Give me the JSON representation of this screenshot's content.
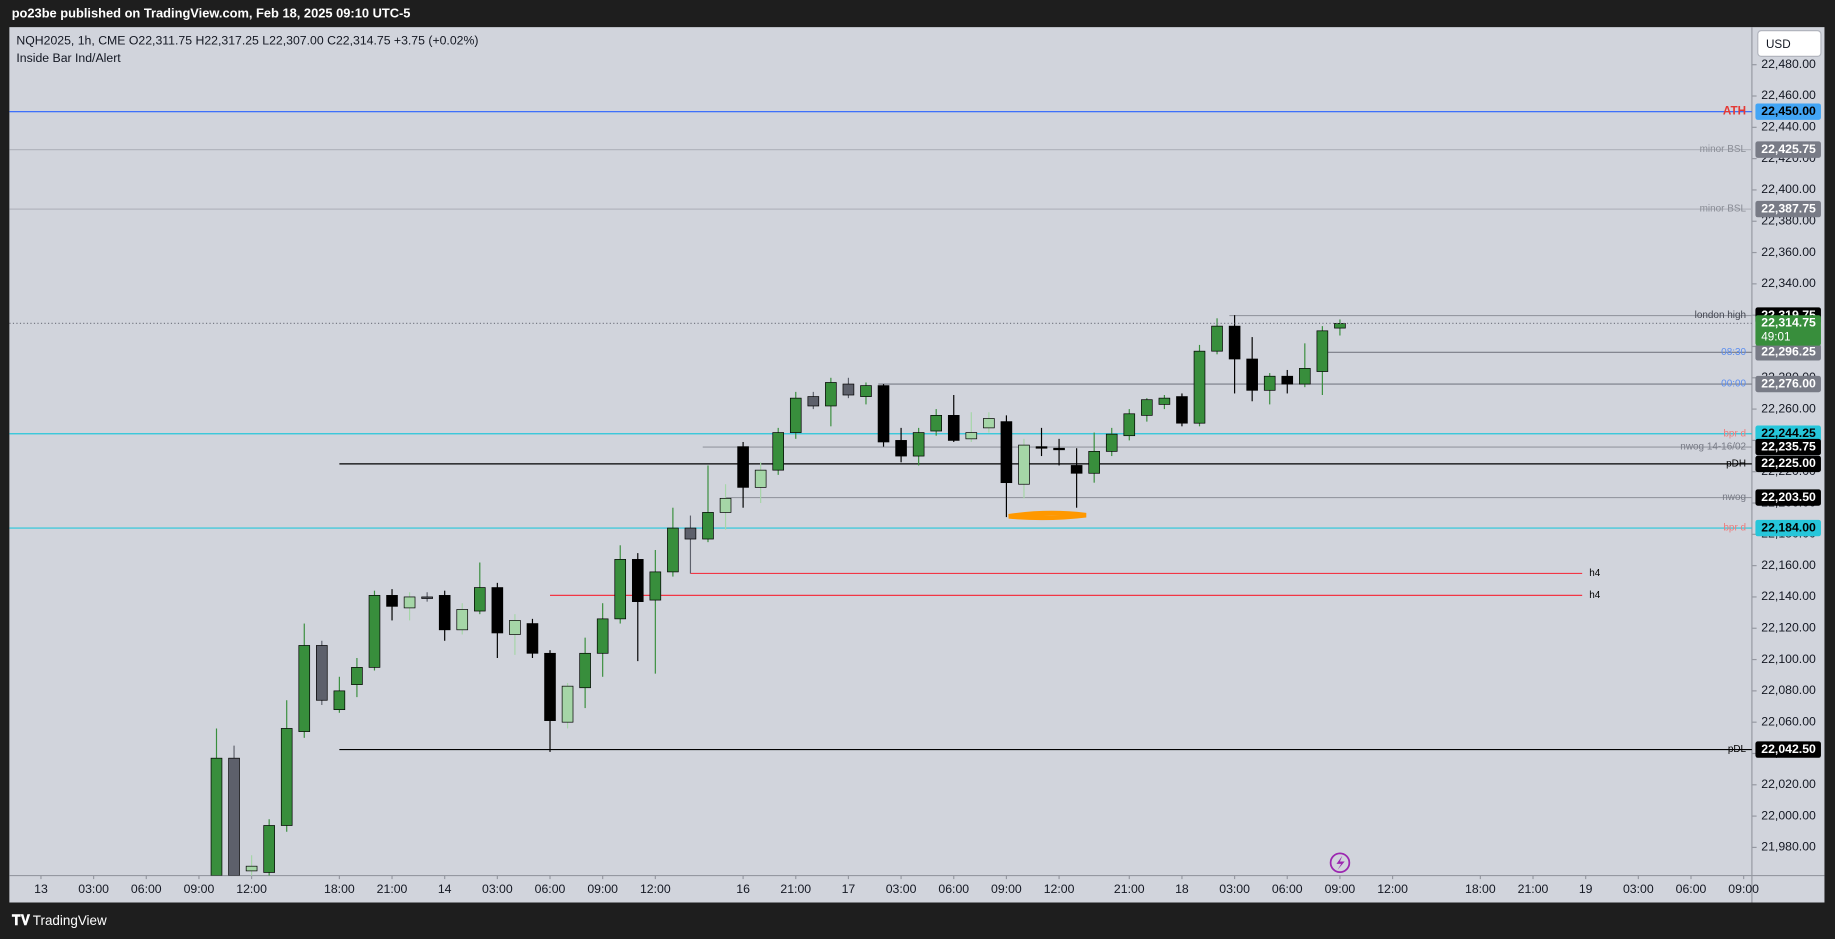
{
  "chart_data": {
    "type": "candlestick",
    "header": "po23be published on TradingView.com, Feb 18, 2025 09:10 UTC-5",
    "legend": "NQH2025, 1h, CME  O22,311.75  H22,317.25  L22,307.00  C22,314.75  +3.75 (+0.02%)",
    "indicator": "Inside Bar Ind/Alert",
    "currency": "USD",
    "brand": "TradingView",
    "up_color": "#388e3c",
    "down_color": "#000000",
    "inside_up_color": "#a5d6a7",
    "inside_down_color": "#5d606b",
    "candles": {
      "open": [
        21962,
        22037,
        21965,
        21964,
        21994,
        22054,
        22109,
        22068,
        22084,
        22095,
        22141,
        22133,
        22140,
        22141,
        22119,
        22131,
        22146,
        22116,
        22123,
        22104,
        22060,
        22082,
        22104,
        22126,
        22164,
        22138,
        22156,
        22184,
        22177,
        22194,
        22236,
        22210,
        22221,
        22245,
        22268,
        22262,
        22276,
        22268,
        22275,
        22240,
        22230,
        22246,
        22256,
        22241,
        22248,
        22252,
        22212,
        22236,
        22235,
        22224,
        22219,
        22233,
        22243,
        22256,
        22263,
        22268,
        22251,
        22297,
        22313,
        22292,
        22272,
        22281,
        22276,
        22284,
        22311.75
      ],
      "high": [
        22056,
        22045,
        21975,
        21998,
        22074,
        22123,
        22112,
        22089,
        22101,
        22144,
        22145,
        22143,
        22143,
        22144,
        22136,
        22162,
        22149,
        22129,
        22126,
        22106,
        22085,
        22114,
        22136,
        22173,
        22168,
        22170,
        22197,
        22192,
        22224,
        22212,
        22239,
        22226,
        22248,
        22271,
        22271,
        22280,
        22280,
        22277,
        22276,
        22248,
        22248,
        22260,
        22269,
        22258,
        22258,
        22256,
        22241,
        22248,
        22241,
        22235,
        22245,
        22248,
        22260,
        22267,
        22269,
        22270,
        22301,
        22318,
        22320,
        22306,
        22283,
        22285,
        22302,
        22313,
        22317.25
      ],
      "low": [
        21962,
        21962,
        21962,
        21962,
        21990,
        22050,
        22071,
        22066,
        22076,
        22093,
        22125,
        22125,
        22137,
        22112,
        22116,
        22129,
        22101,
        22103,
        22101,
        22041,
        22056,
        22069,
        22089,
        22123,
        22099,
        22091,
        22153,
        22155,
        22175,
        22183,
        22197,
        22200,
        22218,
        22241,
        22260,
        22249,
        22267,
        22263,
        22236,
        22226,
        22224,
        22243,
        22239,
        22239,
        22245,
        22191,
        22203,
        22230,
        22224,
        22197,
        22213,
        22230,
        22240,
        22252,
        22260,
        22249,
        22249,
        22295,
        22270,
        22265,
        22263,
        22270,
        22274,
        22269,
        22307
      ],
      "close": [
        22037,
        21962,
        21968,
        21994,
        22056,
        22109,
        22074,
        22080,
        22095,
        22141,
        22134,
        22140,
        22139,
        22119,
        22132,
        22146,
        22117,
        22125,
        22104,
        22061,
        22083,
        22104,
        22126,
        22164,
        22137,
        22156,
        22184,
        22177,
        22194,
        22203,
        22210,
        22221,
        22245,
        22267,
        22262,
        22277,
        22269,
        22275,
        22239,
        22230,
        22245,
        22256,
        22240,
        22245,
        22254,
        22213,
        22237,
        22235,
        22234,
        22219,
        22233,
        22244,
        22257,
        22266,
        22267,
        22251,
        22297,
        22313,
        22292,
        22272,
        22281,
        22276,
        22286,
        22310,
        22314.75
      ]
    },
    "xlim": [
      -11.8,
      87.47
    ],
    "xticks": [
      {
        "value": -10,
        "label": "13"
      },
      {
        "value": -7,
        "label": "03:00"
      },
      {
        "value": -4,
        "label": "06:00"
      },
      {
        "value": -1,
        "label": "09:00"
      },
      {
        "value": 2,
        "label": "12:00"
      },
      {
        "value": 7,
        "label": "18:00"
      },
      {
        "value": 10,
        "label": "21:00"
      },
      {
        "value": 13,
        "label": "14"
      },
      {
        "value": 16,
        "label": "03:00"
      },
      {
        "value": 19,
        "label": "06:00"
      },
      {
        "value": 22,
        "label": "09:00"
      },
      {
        "value": 25,
        "label": "12:00"
      },
      {
        "value": 30,
        "label": "16"
      },
      {
        "value": 33,
        "label": "21:00"
      },
      {
        "value": 36,
        "label": "17"
      },
      {
        "value": 39,
        "label": "03:00"
      },
      {
        "value": 42,
        "label": "06:00"
      },
      {
        "value": 45,
        "label": "09:00"
      },
      {
        "value": 48,
        "label": "12:00"
      },
      {
        "value": 52,
        "label": "21:00"
      },
      {
        "value": 55,
        "label": "18"
      },
      {
        "value": 58,
        "label": "03:00"
      },
      {
        "value": 61,
        "label": "06:00"
      },
      {
        "value": 64,
        "label": "09:00"
      },
      {
        "value": 67,
        "label": "12:00"
      },
      {
        "value": 72,
        "label": "18:00"
      },
      {
        "value": 75,
        "label": "21:00"
      },
      {
        "value": 78,
        "label": "19"
      },
      {
        "value": 81,
        "label": "03:00"
      },
      {
        "value": 84,
        "label": "06:00"
      },
      {
        "value": 87,
        "label": "09:00"
      }
    ],
    "ylim": [
      21962,
      22504
    ],
    "yticks": [
      {
        "value": 22480,
        "label": "22,480.00"
      },
      {
        "value": 22460,
        "label": "22,460.00"
      },
      {
        "value": 22440,
        "label": "22,440.00"
      },
      {
        "value": 22420,
        "label": "22,420.00"
      },
      {
        "value": 22400,
        "label": "22,400.00"
      },
      {
        "value": 22380,
        "label": "22,380.00"
      },
      {
        "value": 22360,
        "label": "22,360.00"
      },
      {
        "value": 22340,
        "label": "22,340.00"
      },
      {
        "value": 22320,
        "label": "22,320.00"
      },
      {
        "value": 22300,
        "label": "22,300.00"
      },
      {
        "value": 22280,
        "label": "22,280.00"
      },
      {
        "value": 22260,
        "label": "22,260.00"
      },
      {
        "value": 22240,
        "label": "22,240.00"
      },
      {
        "value": 22220,
        "label": "22,220.00"
      },
      {
        "value": 22200,
        "label": "22,200.00"
      },
      {
        "value": 22180,
        "label": "22,180.00"
      },
      {
        "value": 22160,
        "label": "22,160.00"
      },
      {
        "value": 22140,
        "label": "22,140.00"
      },
      {
        "value": 22120,
        "label": "22,120.00"
      },
      {
        "value": 22100,
        "label": "22,100.00"
      },
      {
        "value": 22080,
        "label": "22,080.00"
      },
      {
        "value": 22060,
        "label": "22,060.00"
      },
      {
        "value": 22040,
        "label": "22,040.00"
      },
      {
        "value": 22020,
        "label": "22,020.00"
      },
      {
        "value": 22000,
        "label": "22,000.00"
      },
      {
        "value": 21980,
        "label": "21,980.00"
      }
    ],
    "levels": [
      {
        "label": "ATH",
        "value": 22450,
        "value_label": "22,450.00",
        "color": "#2962ff",
        "label_color": "#e53935",
        "tag_color": "#42a5f5",
        "tag_text": "#000000"
      },
      {
        "label": "minor BSL",
        "value": 22425.75,
        "value_label": "22,425.75",
        "color": "#b2b5be",
        "label_color": "#8a8d96",
        "tag_color": "#787b86",
        "tag_text": "#ffffff"
      },
      {
        "label": "minor BSL",
        "value": 22387.75,
        "value_label": "22,387.75",
        "color": "#b2b5be",
        "label_color": "#8a8d96",
        "tag_color": "#787b86",
        "tag_text": "#ffffff"
      },
      {
        "label": "london high",
        "value": 22319.75,
        "value_label": "22,319.75",
        "color": "#9598a1",
        "label_color": "#434651",
        "tag_color": "#000000",
        "tag_text": "#ffffff",
        "from": 57.7
      },
      {
        "label": "08:30",
        "value": 22296.25,
        "value_label": "22,296.25",
        "color": "#787b86",
        "label_color": "#5b8def",
        "tag_color": "#787b86",
        "tag_text": "#ffffff",
        "from": 63
      },
      {
        "label": "00:00",
        "value": 22276,
        "value_label": "22,276.00",
        "color": "#787b86",
        "label_color": "#5b8def",
        "tag_color": "#787b86",
        "tag_text": "#ffffff",
        "from": 37.7
      },
      {
        "label": "bpr d",
        "value": 22244.25,
        "value_label": "22,244.25",
        "color": "#26c6da",
        "label_color": "#ef7b7b",
        "tag_color": "#26c6da",
        "tag_text": "#000000"
      },
      {
        "label": "nwog 14-16/02",
        "value": 22235.75,
        "value_label": "22,235.75",
        "color": "#9598a1",
        "label_color": "#787b86",
        "tag_color": "#000000",
        "tag_text": "#ffffff",
        "from": 27.7
      },
      {
        "label": "pDH",
        "value": 22225,
        "value_label": "22,225.00",
        "color": "#000000",
        "label_color": "#000000",
        "tag_color": "#000000",
        "tag_text": "#ffffff",
        "from": 7
      },
      {
        "label": "nwog",
        "value": 22203.5,
        "value_label": "22,203.50",
        "color": "#9598a1",
        "label_color": "#787b86",
        "tag_color": "#000000",
        "tag_text": "#ffffff",
        "from": 29
      },
      {
        "label": "bpr d",
        "value": 22184,
        "value_label": "22,184.00",
        "color": "#26c6da",
        "label_color": "#ef7b7b",
        "tag_color": "#26c6da",
        "tag_text": "#000000"
      },
      {
        "label": "h4",
        "value": 22155,
        "color": "#f23645",
        "label_color": "#000000",
        "from": 27,
        "to": 77.8
      },
      {
        "label": "h4",
        "value": 22141,
        "color": "#f23645",
        "label_color": "#000000",
        "from": 19,
        "to": 77.8
      },
      {
        "label": "pDL",
        "value": 22042.5,
        "value_label": "22,042.50",
        "color": "#000000",
        "label_color": "#000000",
        "tag_color": "#000000",
        "tag_text": "#ffffff",
        "from": 7
      }
    ],
    "last": {
      "value": 22314.75,
      "value_label": "22,314.75",
      "countdown": "49:01",
      "color": "#388e3c"
    }
  }
}
